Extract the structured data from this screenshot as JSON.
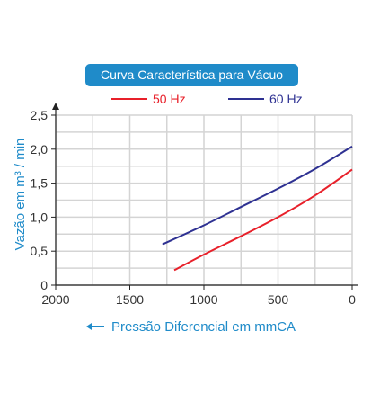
{
  "chart_data": {
    "type": "line",
    "title": "Curva Característica para Vácuo",
    "xlabel": "Pressão Diferencial em mmCA",
    "ylabel": "Vazão em m³ / min",
    "x_reversed": true,
    "xlim": [
      0,
      2000
    ],
    "ylim": [
      0,
      2.5
    ],
    "x_ticks": [
      "2000",
      "1500",
      "1000",
      "500",
      "0"
    ],
    "y_ticks": [
      "0",
      "0,5",
      "1,0",
      "1,5",
      "2,0",
      "2,5"
    ],
    "grid": true,
    "legend_position": "top",
    "series": [
      {
        "name": "50 Hz",
        "color": "#e8202a",
        "x": [
          1200,
          1000,
          750,
          500,
          250,
          0
        ],
        "y": [
          0.22,
          0.45,
          0.72,
          1.0,
          1.32,
          1.7
        ]
      },
      {
        "name": "60 Hz",
        "color": "#2e3192",
        "x": [
          1280,
          1000,
          750,
          500,
          250,
          0
        ],
        "y": [
          0.6,
          0.88,
          1.15,
          1.42,
          1.71,
          2.04
        ]
      }
    ]
  }
}
